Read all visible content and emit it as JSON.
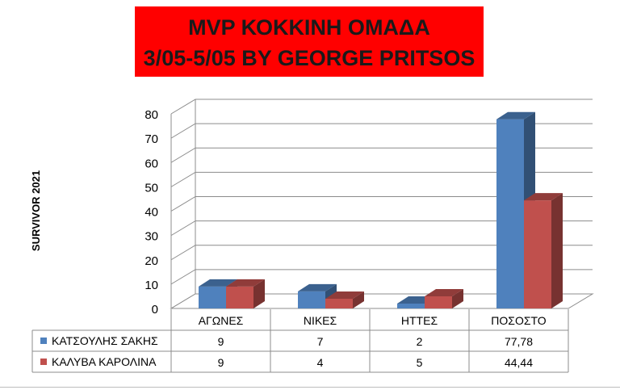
{
  "title": {
    "line1": "MVP ΚΟΚΚΙΝΗ ΟΜΑΔΑ",
    "line2": "3/05-5/05 BY GEORGE PRITSOS",
    "background": "#ff0000"
  },
  "chart_data": {
    "type": "bar",
    "style": "3d-clustered-column",
    "ylabel": "SURVIVOR 2021",
    "xlabel": "",
    "ylim": [
      0,
      80
    ],
    "yticks": [
      0,
      10,
      20,
      30,
      40,
      50,
      60,
      70,
      80
    ],
    "grid": true,
    "legend": "data-table",
    "categories": [
      "ΑΓΩΝΕΣ",
      "ΝΙΚΕΣ",
      "ΗΤΤΕΣ",
      "ΠΟΣΟΣΤΟ"
    ],
    "series": [
      {
        "name": "ΚΑΤΣΟΥΛΗΣ ΣΑΚΗΣ",
        "values": [
          9,
          7,
          2,
          77.78
        ],
        "labels": [
          "9",
          "7",
          "2",
          "77,78"
        ],
        "color": "#4f81bd"
      },
      {
        "name": "ΚΑΛΥΒΑ ΚΑΡΟΛΙΝΑ",
        "values": [
          9,
          4,
          5,
          44.44
        ],
        "labels": [
          "9",
          "4",
          "5",
          "44,44"
        ],
        "color": "#c0504d"
      }
    ]
  }
}
